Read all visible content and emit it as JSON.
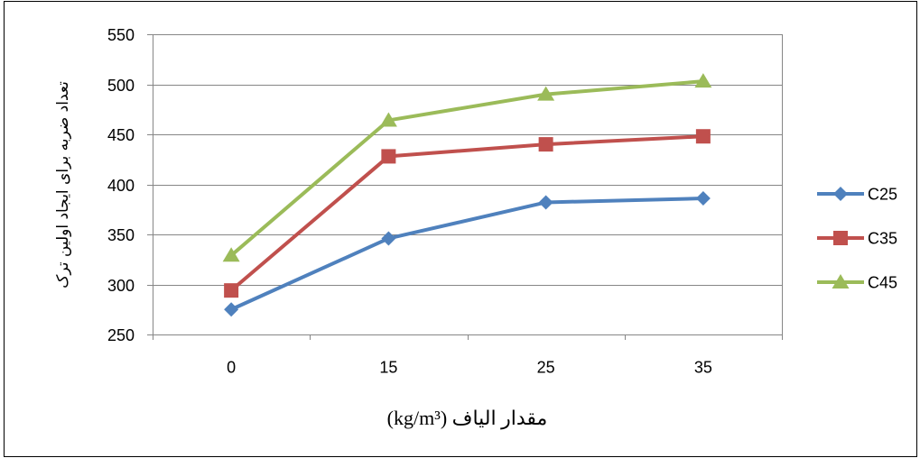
{
  "chart_data": {
    "type": "line",
    "categories": [
      "0",
      "15",
      "25",
      "35"
    ],
    "series": [
      {
        "name": "C25",
        "values": [
          275,
          346,
          382,
          386
        ],
        "color": "#4F81BD",
        "marker": "diamond"
      },
      {
        "name": "C35",
        "values": [
          294,
          428,
          440,
          448
        ],
        "color": "#C0504D",
        "marker": "square"
      },
      {
        "name": "C45",
        "values": [
          329,
          464,
          490,
          503
        ],
        "color": "#9BBB59",
        "marker": "triangle"
      }
    ],
    "xlabel": "مقدار الیاف (kg/m³)",
    "ylabel": "تعداد ضربه برای ایجاد اولین ترک",
    "ylim": [
      250,
      550
    ],
    "yticks": [
      250,
      300,
      350,
      400,
      450,
      500,
      550
    ],
    "grid": true,
    "legend": "right"
  }
}
